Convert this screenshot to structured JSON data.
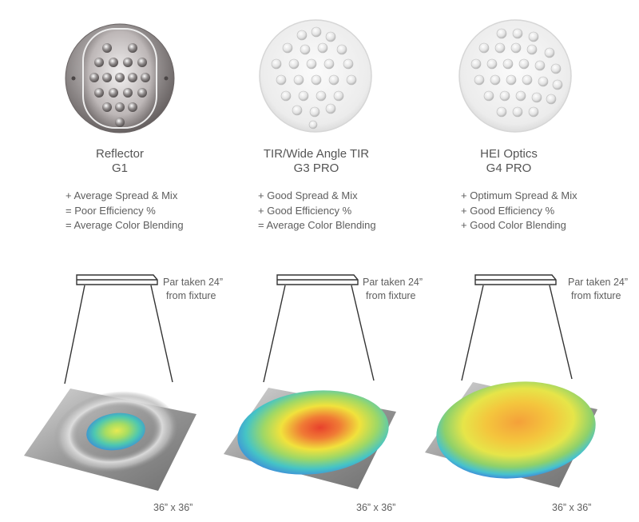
{
  "columns": [
    {
      "title": "Reflector",
      "subtitle": "G1",
      "features": [
        "+ Average Spread & Mix",
        "= Poor Efficiency %",
        "= Average Color Blending"
      ],
      "distance_note_line1": "Par taken 24”",
      "distance_note_line2": "from fixture",
      "area_label": "36” x 36”",
      "lens_image": "reflector-lens-photo",
      "heatmap_spread": 0.35,
      "heatmap_peak": "yellow-green"
    },
    {
      "title": "TIR/Wide Angle TIR",
      "subtitle": "G3 PRO",
      "features": [
        "+ Good Spread & Mix",
        "+ Good Efficiency %",
        "= Average Color Blending"
      ],
      "distance_note_line1": "Par taken 24”",
      "distance_note_line2": "from fixture",
      "area_label": "36” x 36”",
      "lens_image": "tir-lens-photo",
      "heatmap_spread": 0.72,
      "heatmap_peak": "red"
    },
    {
      "title": "HEI Optics",
      "subtitle": "G4 PRO",
      "features": [
        "+ Optimum Spread & Mix",
        "+ Good Efficiency %",
        "+ Good Color Blending"
      ],
      "distance_note_line1": "Par taken 24”",
      "distance_note_line2": "from fixture",
      "area_label": "36” x 36”",
      "lens_image": "hei-optics-lens-photo",
      "heatmap_spread": 0.95,
      "heatmap_peak": "orange"
    }
  ],
  "colors": {
    "text": "#5e5e5e",
    "line": "#333333",
    "surface": "#8a8a8a",
    "heat_red": "#e8412c",
    "heat_orange": "#f6a23a",
    "heat_yellow": "#f1e23c",
    "heat_green": "#8fd16a",
    "heat_cyan": "#3ec3d8",
    "heat_blue": "#3f8fd8"
  }
}
